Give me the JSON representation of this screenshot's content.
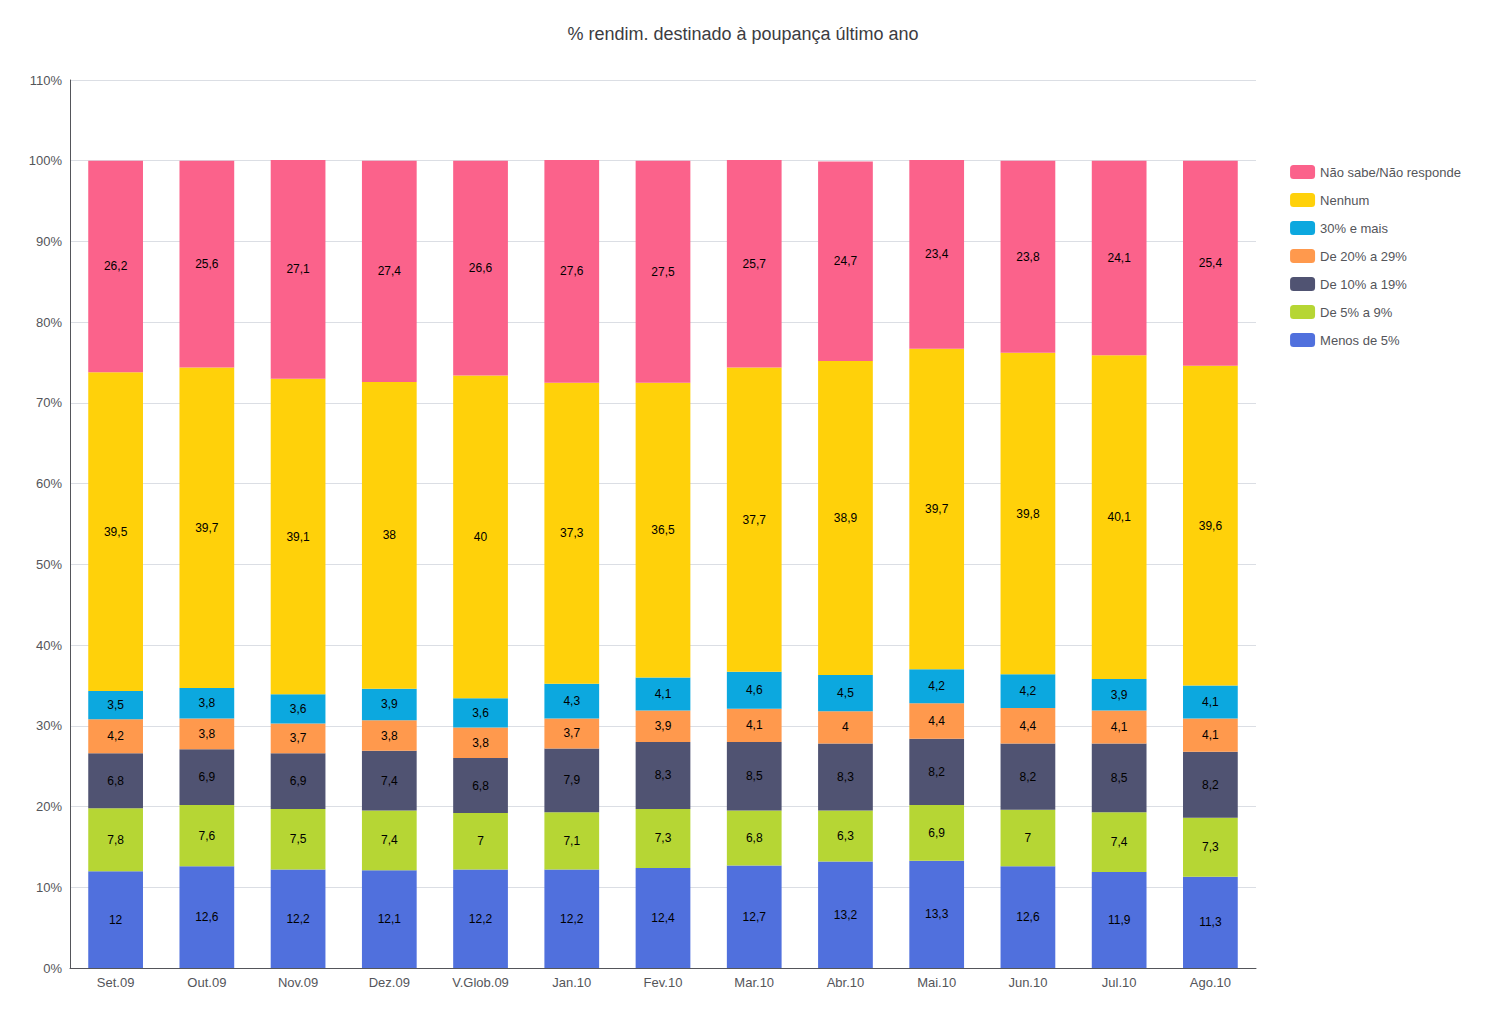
{
  "chart_data": {
    "type": "bar",
    "title": "% rendim. destinado à poupança último ano",
    "categories": [
      "Set.09",
      "Out.09",
      "Nov.09",
      "Dez.09",
      "V.Glob.09",
      "Jan.10",
      "Fev.10",
      "Mar.10",
      "Abr.10",
      "Mai.10",
      "Jun.10",
      "Jul.10",
      "Ago.10"
    ],
    "stacked": true,
    "data_labels": true,
    "grid": true,
    "legend": "right",
    "ylim": [
      0,
      110
    ],
    "yticks": [
      {
        "value": 0,
        "label": "0%"
      },
      {
        "value": 10,
        "label": "10%"
      },
      {
        "value": 20,
        "label": "20%"
      },
      {
        "value": 30,
        "label": "30%"
      },
      {
        "value": 40,
        "label": "40%"
      },
      {
        "value": 50,
        "label": "50%"
      },
      {
        "value": 60,
        "label": "60%"
      },
      {
        "value": 70,
        "label": "70%"
      },
      {
        "value": 80,
        "label": "80%"
      },
      {
        "value": 90,
        "label": "90%"
      },
      {
        "value": 100,
        "label": "100%"
      },
      {
        "value": 110,
        "label": "110%"
      }
    ],
    "series": [
      {
        "name": "Menos de 5%",
        "values": [
          12.0,
          12.6,
          12.2,
          12.1,
          12.2,
          12.2,
          12.4,
          12.7,
          13.2,
          13.3,
          12.6,
          11.9,
          11.3
        ],
        "value_labels": [
          "12",
          "12,6",
          "12,2",
          "12,1",
          "12,2",
          "12,2",
          "12,4",
          "12,7",
          "13,2",
          "13,3",
          "12,6",
          "11,9",
          "11,3"
        ]
      },
      {
        "name": "De 5% a 9%",
        "values": [
          7.8,
          7.6,
          7.5,
          7.4,
          7.0,
          7.1,
          7.3,
          6.8,
          6.3,
          6.9,
          7.0,
          7.4,
          7.3
        ],
        "value_labels": [
          "7,8",
          "7,6",
          "7,5",
          "7,4",
          "7",
          "7,1",
          "7,3",
          "6,8",
          "6,3",
          "6,9",
          "7",
          "7,4",
          "7,3"
        ]
      },
      {
        "name": "De 10% a 19%",
        "values": [
          6.8,
          6.9,
          6.9,
          7.4,
          6.8,
          7.9,
          8.3,
          8.5,
          8.3,
          8.2,
          8.2,
          8.5,
          8.2
        ],
        "value_labels": [
          "6,8",
          "6,9",
          "6,9",
          "7,4",
          "6,8",
          "7,9",
          "8,3",
          "8,5",
          "8,3",
          "8,2",
          "8,2",
          "8,5",
          "8,2"
        ]
      },
      {
        "name": "De 20% a 29%",
        "values": [
          4.2,
          3.8,
          3.7,
          3.8,
          3.8,
          3.7,
          3.9,
          4.1,
          4.0,
          4.4,
          4.4,
          4.1,
          4.1
        ],
        "value_labels": [
          "4,2",
          "3,8",
          "3,7",
          "3,8",
          "3,8",
          "3,7",
          "3,9",
          "4,1",
          "4",
          "4,4",
          "4,4",
          "4,1",
          "4,1"
        ]
      },
      {
        "name": "30% e mais",
        "values": [
          3.5,
          3.8,
          3.6,
          3.9,
          3.6,
          4.3,
          4.1,
          4.6,
          4.5,
          4.2,
          4.2,
          3.9,
          4.1
        ],
        "value_labels": [
          "3,5",
          "3,8",
          "3,6",
          "3,9",
          "3,6",
          "4,3",
          "4,1",
          "4,6",
          "4,5",
          "4,2",
          "4,2",
          "3,9",
          "4,1"
        ]
      },
      {
        "name": "Nenhum",
        "values": [
          39.5,
          39.7,
          39.1,
          38.0,
          40.0,
          37.3,
          36.5,
          37.7,
          38.9,
          39.7,
          39.8,
          40.1,
          39.6
        ],
        "value_labels": [
          "39,5",
          "39,7",
          "39,1",
          "38",
          "40",
          "37,3",
          "36,5",
          "37,7",
          "38,9",
          "39,7",
          "39,8",
          "40,1",
          "39,6"
        ]
      },
      {
        "name": "Não sabe/Não responde",
        "values": [
          26.2,
          25.6,
          27.1,
          27.4,
          26.6,
          27.6,
          27.5,
          25.7,
          24.7,
          23.4,
          23.8,
          24.1,
          25.4
        ],
        "value_labels": [
          "26,2",
          "25,6",
          "27,1",
          "27,4",
          "26,6",
          "27,6",
          "27,5",
          "25,7",
          "24,7",
          "23,4",
          "23,8",
          "24,1",
          "25,4"
        ]
      }
    ]
  }
}
